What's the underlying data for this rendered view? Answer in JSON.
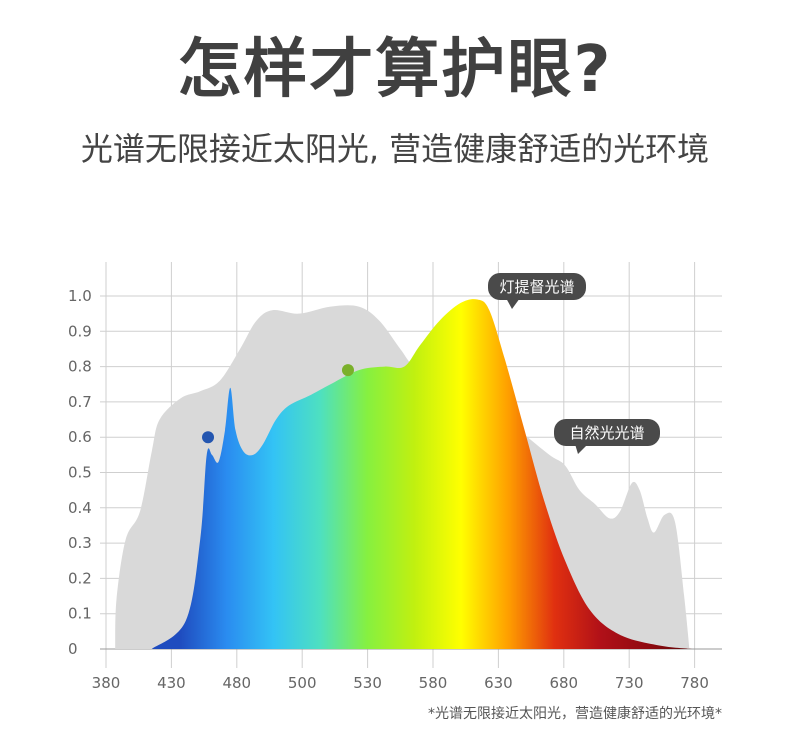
{
  "header": {
    "title": "怎样才算护眼?",
    "subtitle": "光谱无限接近太阳光, 营造健康舒适的光环境"
  },
  "footnote": "*光谱无限接近太阳光，营造健康舒适的光环境*",
  "chart_data": {
    "type": "area",
    "xticks": [
      380,
      430,
      480,
      500,
      530,
      580,
      630,
      680,
      730,
      780
    ],
    "yticks": [
      "0",
      "0.1",
      "0.2",
      "0.3",
      "0.4",
      "0.5",
      "0.6",
      "0.7",
      "0.8",
      "0.9",
      "1.0"
    ],
    "ylim": [
      0,
      1.0
    ],
    "xlim": [
      380,
      780
    ],
    "grid": true,
    "annotations": {
      "led_label": "灯提督光谱",
      "natural_label": "自然光光谱"
    },
    "series": [
      {
        "name": "自然光光谱",
        "color": "#d9d9d9",
        "x": [
          387,
          388,
          395,
          406,
          415,
          421,
          437,
          452,
          467,
          481,
          486,
          491,
          499,
          513,
          526,
          539,
          555,
          566,
          585,
          616,
          646,
          669,
          681,
          692,
          704,
          715,
          723,
          732,
          738,
          744,
          749,
          757,
          765,
          772,
          776
        ],
        "y": [
          0,
          0.14,
          0.31,
          0.39,
          0.56,
          0.65,
          0.71,
          0.73,
          0.76,
          0.85,
          0.93,
          0.96,
          0.95,
          0.97,
          0.97,
          0.93,
          0.85,
          0.8,
          0.78,
          0.72,
          0.62,
          0.55,
          0.52,
          0.45,
          0.41,
          0.37,
          0.39,
          0.47,
          0.45,
          0.37,
          0.33,
          0.38,
          0.36,
          0.15,
          0
        ]
      },
      {
        "name": "灯提督光谱",
        "colors": [
          "#1f4cbf",
          "#2a8cf0",
          "#33c3f5",
          "#4ee0c0",
          "#86f040",
          "#c0f010",
          "#ffff00",
          "#ffa000",
          "#e03010",
          "#b01018",
          "#900a10",
          "#5a0808"
        ],
        "x": [
          415,
          441,
          452,
          457,
          461,
          466,
          471,
          475,
          479,
          482,
          485,
          488,
          492,
          496,
          504,
          513,
          526,
          543,
          558,
          570,
          585,
          601,
          614,
          623,
          635,
          650,
          665,
          681,
          700,
          723,
          753,
          778
        ],
        "y": [
          0,
          0.08,
          0.31,
          0.55,
          0.55,
          0.53,
          0.62,
          0.74,
          0.62,
          0.56,
          0.55,
          0.58,
          0.65,
          0.69,
          0.72,
          0.75,
          0.79,
          0.8,
          0.8,
          0.86,
          0.93,
          0.98,
          0.99,
          0.96,
          0.82,
          0.62,
          0.42,
          0.25,
          0.11,
          0.04,
          0.01,
          0
        ]
      }
    ],
    "markers": [
      {
        "x": 458,
        "y": 0.6,
        "color": "#2456b0"
      },
      {
        "x": 521,
        "y": 0.79,
        "color": "#7ab02a"
      }
    ]
  }
}
